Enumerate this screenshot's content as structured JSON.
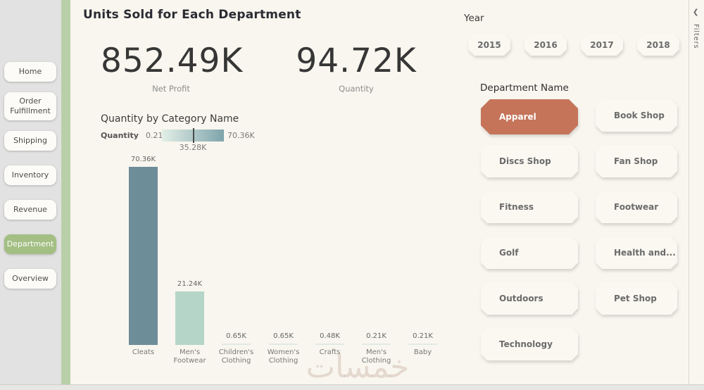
{
  "colors": {
    "main_bg": "#f8f6ee",
    "sidebar_bg": "#e2e2e2",
    "accent_stripe": "#b9cfaa",
    "nav_selected": "#a3bf84",
    "dept_selected": "#c5745a",
    "bar_dark": "#6d8d99",
    "bar_light": "#b6d5c9",
    "gradient_min": "#e3efe7",
    "gradient_max": "#7ea4ab"
  },
  "sidebar": {
    "items": [
      {
        "label": "Home",
        "selected": false
      },
      {
        "label": "Order Fulfillment",
        "selected": false
      },
      {
        "label": "Shipping",
        "selected": false
      },
      {
        "label": "Inventory",
        "selected": false
      },
      {
        "label": "Revenue",
        "selected": false
      },
      {
        "label": "Department",
        "selected": true
      },
      {
        "label": "Overview",
        "selected": false
      }
    ]
  },
  "header": {
    "title": "Units Sold for Each Department"
  },
  "kpis": [
    {
      "value": "852.49K",
      "label": "Net Profit"
    },
    {
      "value": "94.72K",
      "label": "Quantity"
    }
  ],
  "year_filter": {
    "label": "Year",
    "options": [
      "2015",
      "2016",
      "2017",
      "2018"
    ]
  },
  "department_filter": {
    "label": "Department Name",
    "options": [
      {
        "label": "Apparel",
        "selected": true
      },
      {
        "label": "Book Shop",
        "selected": false
      },
      {
        "label": "Discs Shop",
        "selected": false
      },
      {
        "label": "Fan Shop",
        "selected": false
      },
      {
        "label": "Fitness",
        "selected": false
      },
      {
        "label": "Footwear",
        "selected": false
      },
      {
        "label": "Golf",
        "selected": false
      },
      {
        "label": "Health and...",
        "selected": false
      },
      {
        "label": "Outdoors",
        "selected": false
      },
      {
        "label": "Pet Shop",
        "selected": false
      },
      {
        "label": "Technology",
        "selected": false
      }
    ]
  },
  "chart_data": {
    "type": "bar",
    "title": "Quantity by Category Name",
    "legend": {
      "label": "Quantity",
      "min_label": "0.21K",
      "mid_label": "35.28K",
      "max_label": "70.36K",
      "position": "top"
    },
    "categories": [
      "Cleats",
      "Men's Footwear",
      "Children's Clothing",
      "Women's Clothing",
      "Crafts",
      "Men's Clothing",
      "Baby"
    ],
    "values": [
      70.36,
      21.24,
      0.65,
      0.65,
      0.48,
      0.21,
      0.21
    ],
    "value_labels": [
      "70.36K",
      "21.24K",
      "0.65K",
      "0.65K",
      "0.48K",
      "0.21K",
      "0.21K"
    ],
    "bar_colors": [
      "#6d8d99",
      "#b6d5c9",
      "#dfe9e3",
      "#dfe9e3",
      "#e0eae4",
      "#e2ebe5",
      "#e2ebe5"
    ],
    "xlabel": "",
    "ylabel": "Quantity",
    "ylim": [
      0,
      70.36
    ],
    "grid": false
  },
  "filters_pane": {
    "chevron": "❮",
    "label": "Filters"
  },
  "watermark": {
    "text": "خمسات"
  }
}
